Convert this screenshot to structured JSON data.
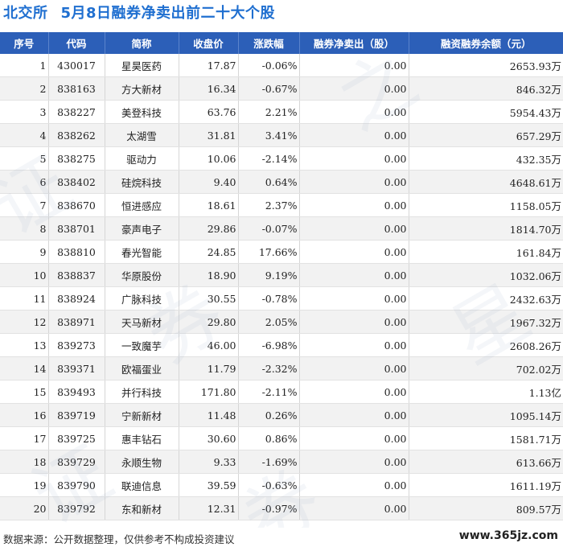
{
  "header": {
    "exchange": "北交所",
    "title": "5月8日融券净卖出前二十大个股"
  },
  "table": {
    "columns": [
      "序号",
      "代码",
      "简称",
      "收盘价",
      "涨跌幅",
      "融券净卖出（股）",
      "融资融券余额（元）"
    ],
    "rows": [
      {
        "idx": "1",
        "code": "430017",
        "name": "星昊医药",
        "close": "17.87",
        "change": "-0.06%",
        "net": "0.00",
        "balance": "2653.93万"
      },
      {
        "idx": "2",
        "code": "838163",
        "name": "方大新材",
        "close": "16.34",
        "change": "-0.67%",
        "net": "0.00",
        "balance": "846.32万"
      },
      {
        "idx": "3",
        "code": "838227",
        "name": "美登科技",
        "close": "63.76",
        "change": "2.21%",
        "net": "0.00",
        "balance": "5954.43万"
      },
      {
        "idx": "4",
        "code": "838262",
        "name": "太湖雪",
        "close": "31.81",
        "change": "3.41%",
        "net": "0.00",
        "balance": "657.29万"
      },
      {
        "idx": "5",
        "code": "838275",
        "name": "驱动力",
        "close": "10.06",
        "change": "-2.14%",
        "net": "0.00",
        "balance": "432.35万"
      },
      {
        "idx": "6",
        "code": "838402",
        "name": "硅烷科技",
        "close": "9.40",
        "change": "0.64%",
        "net": "0.00",
        "balance": "4648.61万"
      },
      {
        "idx": "7",
        "code": "838670",
        "name": "恒进感应",
        "close": "18.61",
        "change": "2.37%",
        "net": "0.00",
        "balance": "1158.05万"
      },
      {
        "idx": "8",
        "code": "838701",
        "name": "豪声电子",
        "close": "29.86",
        "change": "-0.07%",
        "net": "0.00",
        "balance": "1814.70万"
      },
      {
        "idx": "9",
        "code": "838810",
        "name": "春光智能",
        "close": "24.85",
        "change": "17.66%",
        "net": "0.00",
        "balance": "161.84万"
      },
      {
        "idx": "10",
        "code": "838837",
        "name": "华原股份",
        "close": "18.90",
        "change": "9.19%",
        "net": "0.00",
        "balance": "1032.06万"
      },
      {
        "idx": "11",
        "code": "838924",
        "name": "广脉科技",
        "close": "30.55",
        "change": "-0.78%",
        "net": "0.00",
        "balance": "2432.63万"
      },
      {
        "idx": "12",
        "code": "838971",
        "name": "天马新材",
        "close": "29.80",
        "change": "2.05%",
        "net": "0.00",
        "balance": "1967.32万"
      },
      {
        "idx": "13",
        "code": "839273",
        "name": "一致魔芋",
        "close": "46.00",
        "change": "-6.98%",
        "net": "0.00",
        "balance": "2608.26万"
      },
      {
        "idx": "14",
        "code": "839371",
        "name": "欧福蛋业",
        "close": "11.79",
        "change": "-2.32%",
        "net": "0.00",
        "balance": "702.02万"
      },
      {
        "idx": "15",
        "code": "839493",
        "name": "并行科技",
        "close": "171.80",
        "change": "-2.11%",
        "net": "0.00",
        "balance": "1.13亿"
      },
      {
        "idx": "16",
        "code": "839719",
        "name": "宁新新材",
        "close": "11.48",
        "change": "0.26%",
        "net": "0.00",
        "balance": "1095.14万"
      },
      {
        "idx": "17",
        "code": "839725",
        "name": "惠丰钻石",
        "close": "30.60",
        "change": "0.86%",
        "net": "0.00",
        "balance": "1581.71万"
      },
      {
        "idx": "18",
        "code": "839729",
        "name": "永顺生物",
        "close": "9.33",
        "change": "-1.69%",
        "net": "0.00",
        "balance": "613.66万"
      },
      {
        "idx": "19",
        "code": "839790",
        "name": "联迪信息",
        "close": "39.59",
        "change": "-0.63%",
        "net": "0.00",
        "balance": "1611.19万"
      },
      {
        "idx": "20",
        "code": "839792",
        "name": "东和新材",
        "close": "12.31",
        "change": "-0.97%",
        "net": "0.00",
        "balance": "809.57万"
      }
    ]
  },
  "footer": {
    "source": "数据来源：公开数据整理，仅供参考不构成投资建议",
    "site": "www.365jz.com"
  },
  "colors": {
    "header_blue": "#2c5fb8",
    "title_blue": "#1f6fd0",
    "up_red": "#d4161f",
    "down_green": "#1a9a2c"
  }
}
